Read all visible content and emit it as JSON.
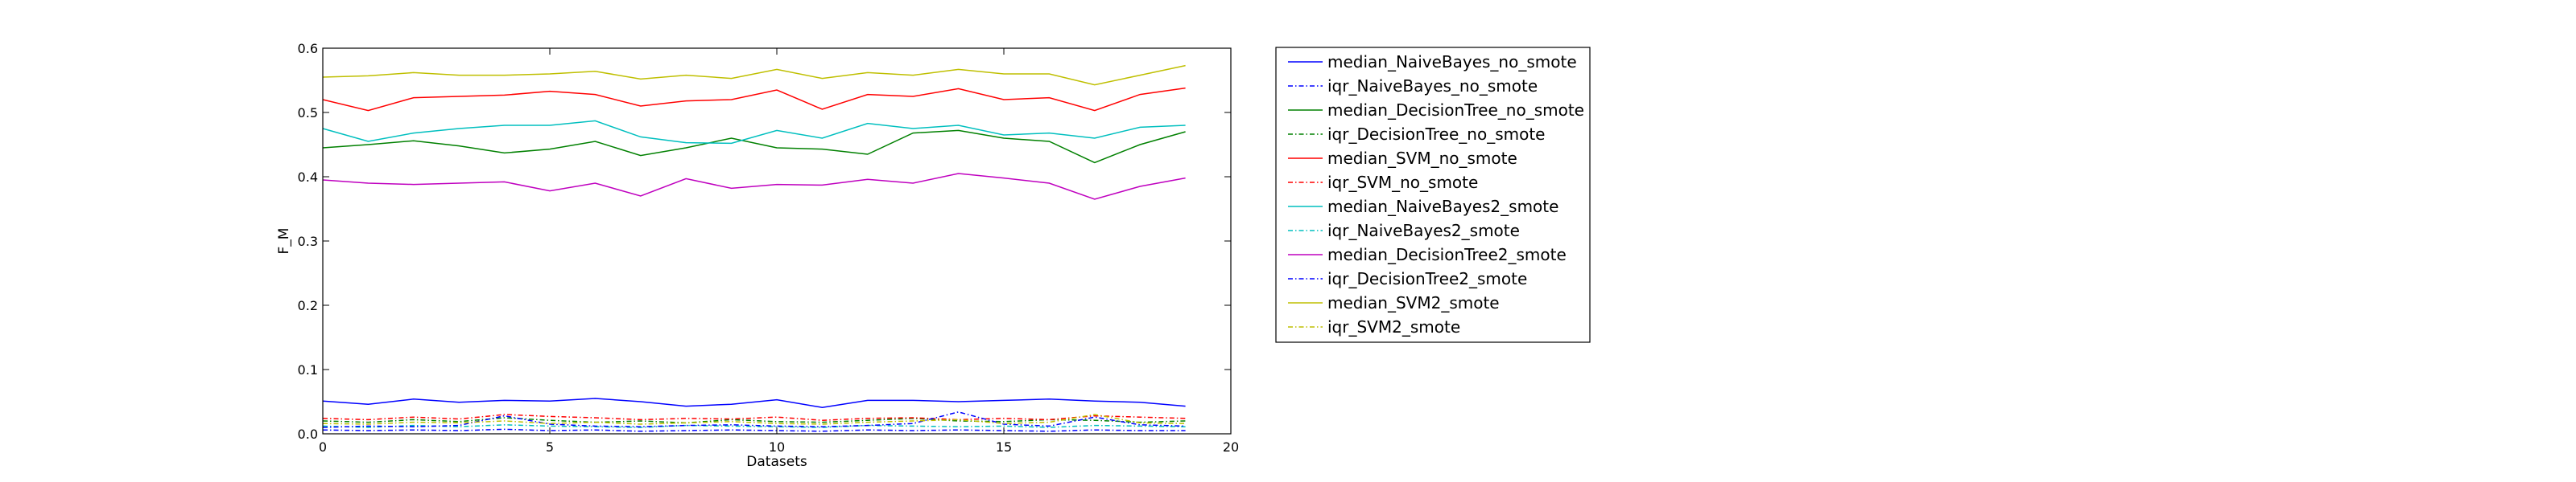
{
  "chart_data": {
    "type": "line",
    "xlabel": "Datasets",
    "ylabel": "F_M",
    "xlim": [
      0,
      20
    ],
    "ylim": [
      0,
      0.6
    ],
    "x_ticks": [
      0,
      5,
      10,
      15,
      20
    ],
    "y_ticks": [
      0.0,
      0.1,
      0.2,
      0.3,
      0.4,
      0.5,
      0.6
    ],
    "x_tick_labels": [
      "0",
      "5",
      "10",
      "15",
      "20"
    ],
    "y_tick_labels": [
      "0.0",
      "0.1",
      "0.2",
      "0.3",
      "0.4",
      "0.5",
      "0.6"
    ],
    "grid": false,
    "legend_position": "outside-right",
    "x": [
      0,
      1,
      2,
      3,
      4,
      5,
      6,
      7,
      8,
      9,
      10,
      11,
      12,
      13,
      14,
      15,
      16,
      17,
      18,
      19
    ],
    "series": [
      {
        "name": "median_NaiveBayes_no_smote",
        "color": "#0000ff",
        "style": "solid",
        "values": [
          0.051,
          0.046,
          0.054,
          0.049,
          0.052,
          0.051,
          0.055,
          0.05,
          0.043,
          0.046,
          0.053,
          0.041,
          0.052,
          0.052,
          0.05,
          0.052,
          0.054,
          0.051,
          0.049,
          0.043
        ]
      },
      {
        "name": "iqr_NaiveBayes_no_smote",
        "color": "#0000ff",
        "style": "dashdot",
        "values": [
          0.006,
          0.005,
          0.006,
          0.005,
          0.007,
          0.005,
          0.006,
          0.004,
          0.005,
          0.006,
          0.005,
          0.004,
          0.006,
          0.005,
          0.006,
          0.005,
          0.004,
          0.006,
          0.005,
          0.005
        ]
      },
      {
        "name": "median_DecisionTree_no_smote",
        "color": "#008000",
        "style": "solid",
        "values": [
          0.445,
          0.45,
          0.456,
          0.448,
          0.437,
          0.443,
          0.455,
          0.433,
          0.445,
          0.46,
          0.445,
          0.443,
          0.435,
          0.468,
          0.472,
          0.46,
          0.455,
          0.422,
          0.45,
          0.47
        ]
      },
      {
        "name": "iqr_DecisionTree_no_smote",
        "color": "#008000",
        "style": "dashdot",
        "values": [
          0.02,
          0.018,
          0.022,
          0.019,
          0.025,
          0.021,
          0.018,
          0.02,
          0.017,
          0.022,
          0.019,
          0.018,
          0.021,
          0.024,
          0.02,
          0.019,
          0.022,
          0.021,
          0.018,
          0.02
        ]
      },
      {
        "name": "median_SVM_no_smote",
        "color": "#ff0000",
        "style": "solid",
        "values": [
          0.52,
          0.503,
          0.523,
          0.525,
          0.527,
          0.533,
          0.528,
          0.51,
          0.518,
          0.52,
          0.535,
          0.505,
          0.528,
          0.525,
          0.537,
          0.52,
          0.523,
          0.503,
          0.528,
          0.538
        ]
      },
      {
        "name": "iqr_SVM_no_smote",
        "color": "#ff0000",
        "style": "dashdot",
        "values": [
          0.024,
          0.022,
          0.026,
          0.023,
          0.03,
          0.027,
          0.025,
          0.022,
          0.024,
          0.023,
          0.026,
          0.021,
          0.024,
          0.025,
          0.022,
          0.024,
          0.022,
          0.028,
          0.026,
          0.024
        ]
      },
      {
        "name": "median_NaiveBayes2_smote",
        "color": "#00bfbf",
        "style": "solid",
        "values": [
          0.475,
          0.455,
          0.468,
          0.475,
          0.48,
          0.48,
          0.487,
          0.462,
          0.453,
          0.452,
          0.472,
          0.46,
          0.483,
          0.475,
          0.48,
          0.465,
          0.468,
          0.46,
          0.477,
          0.48
        ]
      },
      {
        "name": "iqr_NaiveBayes2_smote",
        "color": "#00bfbf",
        "style": "dashdot",
        "values": [
          0.012,
          0.01,
          0.013,
          0.011,
          0.014,
          0.012,
          0.011,
          0.01,
          0.013,
          0.012,
          0.011,
          0.01,
          0.013,
          0.012,
          0.011,
          0.012,
          0.01,
          0.013,
          0.012,
          0.011
        ]
      },
      {
        "name": "median_DecisionTree2_smote",
        "color": "#bf00bf",
        "style": "solid",
        "values": [
          0.395,
          0.39,
          0.388,
          0.39,
          0.392,
          0.378,
          0.39,
          0.37,
          0.397,
          0.382,
          0.388,
          0.387,
          0.396,
          0.39,
          0.405,
          0.398,
          0.39,
          0.365,
          0.385,
          0.398
        ]
      },
      {
        "name": "iqr_DecisionTree2_smote",
        "color": "#0000ff",
        "style": "dashdot",
        "values": [
          0.01,
          0.012,
          0.011,
          0.013,
          0.028,
          0.015,
          0.012,
          0.011,
          0.013,
          0.014,
          0.012,
          0.011,
          0.013,
          0.016,
          0.034,
          0.015,
          0.012,
          0.026,
          0.014,
          0.012
        ]
      },
      {
        "name": "median_SVM2_smote",
        "color": "#bfbf00",
        "style": "solid",
        "values": [
          0.555,
          0.557,
          0.562,
          0.558,
          0.558,
          0.56,
          0.564,
          0.552,
          0.558,
          0.553,
          0.567,
          0.553,
          0.562,
          0.558,
          0.567,
          0.56,
          0.56,
          0.543,
          0.558,
          0.573
        ]
      },
      {
        "name": "iqr_SVM2_smote",
        "color": "#bfbf00",
        "style": "dashdot",
        "values": [
          0.016,
          0.015,
          0.018,
          0.017,
          0.02,
          0.016,
          0.018,
          0.015,
          0.017,
          0.019,
          0.016,
          0.015,
          0.018,
          0.02,
          0.022,
          0.016,
          0.018,
          0.03,
          0.017,
          0.016
        ]
      }
    ]
  }
}
